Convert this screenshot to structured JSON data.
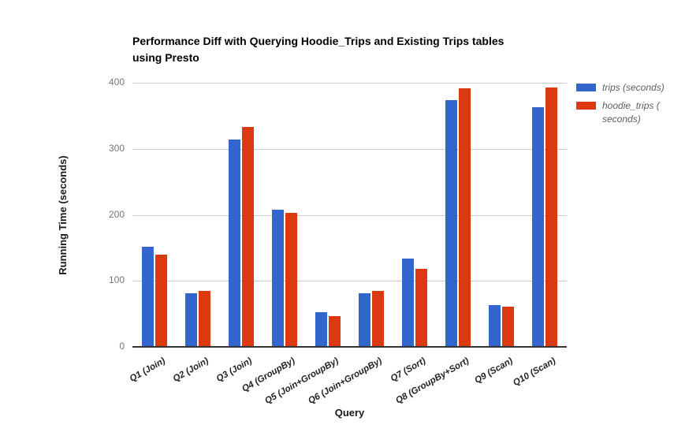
{
  "title_lines": [
    "Performance Diff with Querying Hoodie_Trips and Existing Trips tables",
    "using Presto"
  ],
  "chart_data": {
    "type": "bar",
    "title": "Performance Diff with Querying Hoodie_Trips and Existing Trips tables using Presto",
    "categories": [
      "Q1 (Join)",
      "Q2 (Join)",
      "Q3 (Join)",
      "Q4 (GroupBy)",
      "Q5 (Join+GroupBy)",
      "Q6 (Join+GroupBy)",
      "Q7 (Sort)",
      "Q8 (GroupBy+Sort)",
      "Q9 (Scan)",
      "Q10 (Scan)"
    ],
    "series": [
      {
        "name": "trips (seconds)",
        "color": "#3366cc",
        "values": [
          150,
          80,
          313,
          207,
          51,
          80,
          132,
          372,
          62,
          362
        ]
      },
      {
        "name": "hoodie_trips (seconds)",
        "color": "#dc3912",
        "values": [
          138,
          84,
          332,
          202,
          45,
          84,
          117,
          391,
          60,
          392
        ]
      }
    ],
    "xlabel": "Query",
    "ylabel": "Running Time (seconds)",
    "ylim": [
      0,
      400
    ],
    "yticks": [
      0,
      100,
      200,
      300,
      400
    ],
    "grid": true,
    "legend_position": "right",
    "legend": [
      {
        "lines": [
          "trips (seconds)"
        ]
      },
      {
        "lines": [
          "hoodie_trips (",
          "seconds)"
        ]
      }
    ]
  },
  "colors": {
    "series_blue": "#3366cc",
    "series_red": "#dc3912",
    "gridline": "#cccccc",
    "axis_line": "#333333",
    "y_tick_text": "#757575",
    "x_tick_text": "#222222",
    "legend_text": "#5e5e5e"
  }
}
